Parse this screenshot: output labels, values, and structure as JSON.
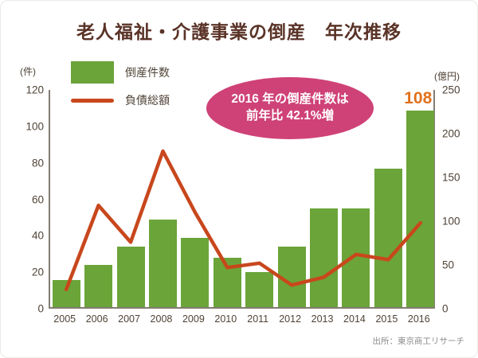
{
  "title": "老人福祉・介護事業の倒産　年次推移",
  "legend": [
    {
      "label": "倒産件数",
      "swatch": "green-bar-swatch",
      "color": "#6ba439"
    },
    {
      "label": "負債総額",
      "swatch": "red-line-swatch",
      "color": "#c8471d"
    }
  ],
  "annotation": {
    "line1": "2016 年の倒産件数は",
    "line2": "前年比 42.1%増",
    "bg_color": "#cf4277",
    "text_color": "#ffffff"
  },
  "source": "出所：東京商工リサーチ",
  "colors": {
    "title": "#5a3327",
    "bar": "#6ba439",
    "line": "#c8471d",
    "data_label": "#e0711c",
    "axis": "#837c72",
    "tick_text": "#4f4337"
  },
  "chart_data": {
    "type": "bar",
    "categories": [
      "2005",
      "2006",
      "2007",
      "2008",
      "2009",
      "2010",
      "2011",
      "2012",
      "2013",
      "2014",
      "2015",
      "2016"
    ],
    "series": [
      {
        "name": "倒産件数",
        "type": "bar",
        "axis": "left",
        "unit": "件",
        "color": "#6ba439",
        "values": [
          15,
          23,
          33,
          48,
          38,
          27,
          19,
          33,
          54,
          54,
          76,
          108
        ]
      },
      {
        "name": "負債総額",
        "type": "line",
        "axis": "right",
        "unit": "億円",
        "color": "#c8471d",
        "values": [
          22,
          118,
          76,
          180,
          110,
          47,
          52,
          27,
          36,
          62,
          56,
          98
        ]
      }
    ],
    "left_axis": {
      "label": "(件)",
      "min": 0,
      "max": 120,
      "ticks": [
        0,
        20,
        40,
        60,
        80,
        100,
        120
      ]
    },
    "right_axis": {
      "label": "(億円)",
      "min": 0,
      "max": 250,
      "ticks": [
        0,
        50,
        100,
        150,
        200,
        250
      ]
    },
    "data_label": {
      "category": "2016",
      "text": "108",
      "color": "#e0711c"
    },
    "grid": false,
    "legend_position": "top-left"
  }
}
